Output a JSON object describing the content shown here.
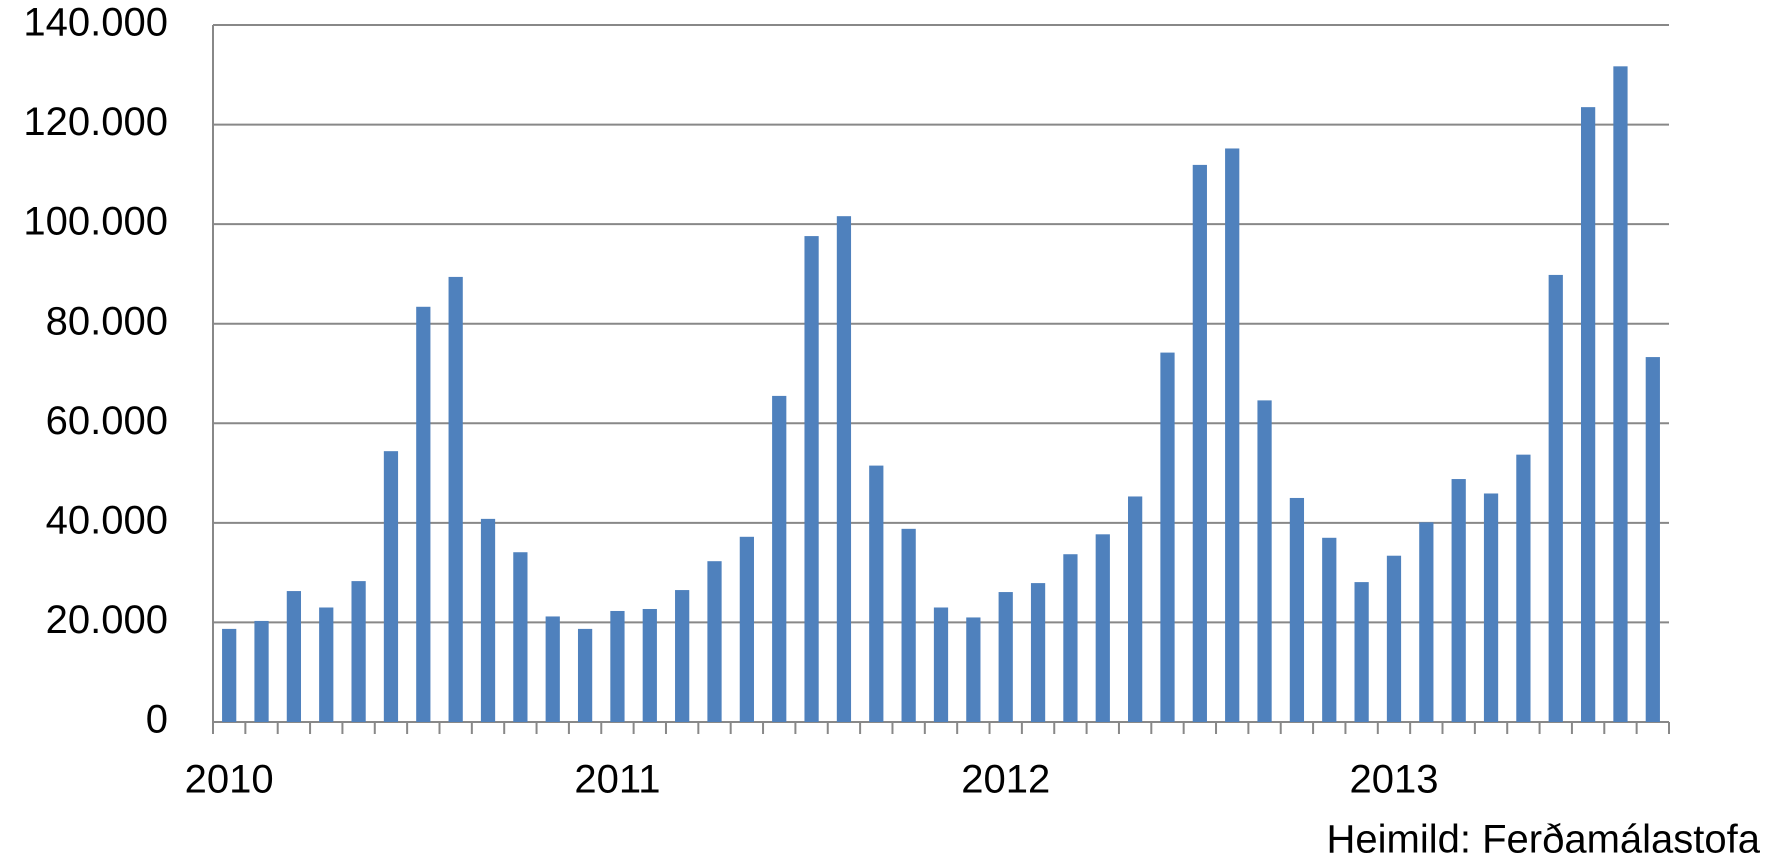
{
  "chart_data": {
    "type": "bar",
    "categories": [
      "2010",
      null,
      null,
      null,
      null,
      null,
      null,
      null,
      null,
      null,
      null,
      null,
      "2011",
      null,
      null,
      null,
      null,
      null,
      null,
      null,
      null,
      null,
      null,
      null,
      "2012",
      null,
      null,
      null,
      null,
      null,
      null,
      null,
      null,
      null,
      null,
      null,
      "2013",
      null,
      null,
      null,
      null,
      null,
      null,
      null,
      null
    ],
    "values": [
      18700,
      20300,
      26300,
      23000,
      28300,
      54400,
      83400,
      89400,
      40800,
      34100,
      21200,
      18700,
      22300,
      22700,
      26500,
      32300,
      37200,
      65500,
      97600,
      101600,
      51500,
      38800,
      23000,
      21000,
      26100,
      27900,
      33700,
      37700,
      45300,
      74200,
      111900,
      115200,
      64600,
      45000,
      37000,
      28100,
      33400,
      40100,
      48800,
      45900,
      53700,
      89800,
      123500,
      131700,
      73300
    ],
    "color": "#4f81bd",
    "ylim": [
      0,
      140000
    ],
    "yticks": [
      0,
      {
        "value": 20000,
        "label": "20.000"
      },
      {
        "value": 40000,
        "label": "40.000"
      },
      {
        "value": 60000,
        "label": "60.000"
      },
      {
        "value": 80000,
        "label": "80.000"
      },
      {
        "value": 100000,
        "label": "100.000"
      },
      {
        "value": 120000,
        "label": "120.000"
      },
      {
        "value": 140000,
        "label": "140.000"
      }
    ],
    "grid": true,
    "annotation": "Heimild: Ferðamálastofa"
  }
}
